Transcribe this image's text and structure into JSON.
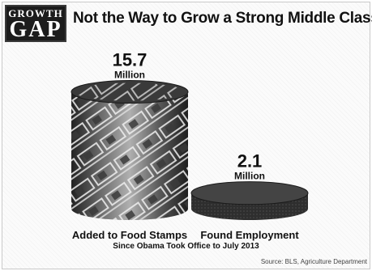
{
  "logo": {
    "line1": "GROWTH",
    "line2": "GAP"
  },
  "title": "Not the Way to Grow a Strong Middle Class",
  "subtitle": "Since Obama Took Office to July 2013",
  "source": "Source: BLS, Agriculture Department",
  "colors": {
    "cylinder_dark": "#2b2b2b",
    "cylinder_mid": "#5a5a5a",
    "cylinder_light": "#9a9a9a",
    "text": "#111111"
  },
  "chart_data": {
    "type": "bar",
    "title": "Not the Way to Grow a Strong Middle Class",
    "categories": [
      "Added to Food Stamps",
      "Found Employment"
    ],
    "values": [
      15.7,
      2.1
    ],
    "value_labels": [
      "15.7",
      "2.1"
    ],
    "unit": "Million",
    "xlabel": "",
    "ylabel": "",
    "grid": false,
    "legend": "none"
  }
}
